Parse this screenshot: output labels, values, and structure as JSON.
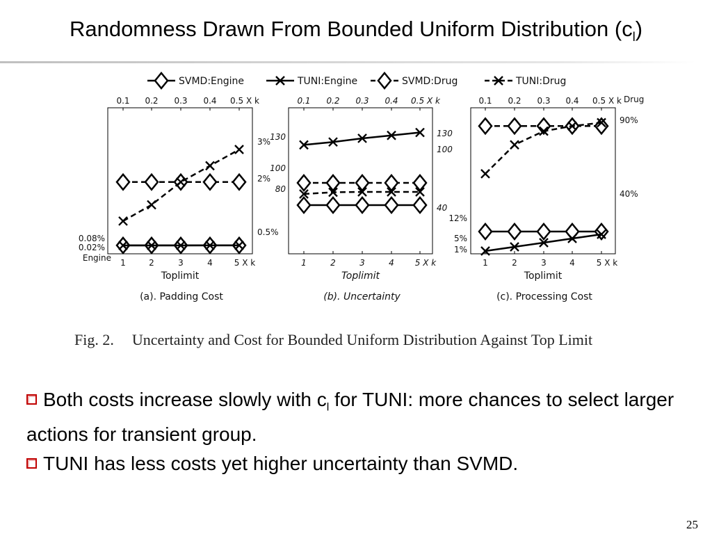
{
  "slide": {
    "title_main": "Randomness Drawn From Bounded Uniform Distribution (c",
    "title_sub": "l",
    "title_end": ")",
    "page_number": "25"
  },
  "figure": {
    "caption_label": "Fig. 2.",
    "caption_text": "Uncertainty and Cost for Bounded Uniform Distribution Against Top Limit",
    "legend": [
      "SVMD:Engine",
      "TUNI:Engine",
      "SVMD:Drug",
      "TUNI:Drug"
    ]
  },
  "bullets": [
    {
      "text_before": "Both costs increase slowly with c",
      "sub": "l",
      "text_after": " for TUNI: more chances to select larger actions for transient group."
    },
    {
      "text_before": "TUNI has less costs yet higher uncertainty than SVMD.",
      "sub": "",
      "text_after": ""
    }
  ],
  "chart_data": [
    {
      "type": "line",
      "title": "(a). Padding Cost",
      "xlabel": "Toplimit",
      "x_bottom_ticks": [
        "1",
        "2",
        "3",
        "4",
        "5 X k"
      ],
      "x_top_ticks": [
        "0.1",
        "0.2",
        "0.3",
        "0.4",
        "0.5 X k"
      ],
      "x": [
        1,
        2,
        3,
        4,
        5
      ],
      "left_axis_label": "Engine",
      "left_ticks": [
        "0.08%",
        "0.02%"
      ],
      "right_ticks": [
        "3%",
        "2%",
        "0.5%"
      ],
      "series": [
        {
          "name": "SVMD:Engine",
          "axis": "left",
          "values": [
            0.08,
            0.08,
            0.08,
            0.08,
            0.08
          ]
        },
        {
          "name": "TUNI:Engine",
          "axis": "left",
          "values": [
            0.0,
            0.01,
            0.03,
            0.07,
            0.08
          ]
        },
        {
          "name": "SVMD:Drug",
          "axis": "right",
          "values": [
            2.0,
            2.0,
            2.0,
            2.0,
            2.0
          ]
        },
        {
          "name": "TUNI:Drug",
          "axis": "right",
          "values": [
            0.8,
            1.3,
            2.0,
            2.5,
            3.0
          ]
        }
      ]
    },
    {
      "type": "line",
      "title": "(b). Uncertainty",
      "xlabel": "Toplimit",
      "x_bottom_ticks": [
        "1",
        "2",
        "3",
        "4",
        "5 X k"
      ],
      "x_top_ticks": [
        "0.1",
        "0.2",
        "0.3",
        "0.4",
        "0.5 X k"
      ],
      "x": [
        1,
        2,
        3,
        4,
        5
      ],
      "left_ticks": [
        "130",
        "100",
        "80"
      ],
      "right_ticks": [
        "130",
        "100",
        "40"
      ],
      "series": [
        {
          "name": "SVMD:Engine",
          "axis": "left",
          "values": [
            88,
            88,
            88,
            88,
            88
          ]
        },
        {
          "name": "TUNI:Engine",
          "axis": "right",
          "values": [
            92,
            96,
            101,
            105,
            109
          ]
        },
        {
          "name": "SVMD:Drug",
          "axis": "right",
          "values": [
            40,
            40,
            40,
            40,
            40
          ]
        },
        {
          "name": "TUNI:Drug",
          "axis": "left",
          "values": [
            120,
            125,
            126,
            126,
            126
          ]
        }
      ]
    },
    {
      "type": "line",
      "title": "(c). Processing Cost",
      "xlabel": "Toplimit",
      "x_bottom_ticks": [
        "1",
        "2",
        "3",
        "4",
        "5 X k"
      ],
      "x_top_ticks": [
        "0.1",
        "0.2",
        "0.3",
        "0.4",
        "0.5 X k"
      ],
      "top_axis_label": "Drug",
      "x": [
        1,
        2,
        3,
        4,
        5
      ],
      "left_ticks": [
        "12%",
        "5%",
        "1%"
      ],
      "right_ticks": [
        "90%",
        "40%"
      ],
      "series": [
        {
          "name": "SVMD:Engine",
          "axis": "left",
          "values": [
            7,
            7,
            7,
            7,
            7
          ]
        },
        {
          "name": "TUNI:Engine",
          "axis": "left",
          "values": [
            0,
            1.5,
            3,
            4.5,
            6
          ]
        },
        {
          "name": "SVMD:Drug",
          "axis": "right",
          "values": [
            86,
            86,
            86,
            86,
            86
          ]
        },
        {
          "name": "TUNI:Drug",
          "axis": "right",
          "values": [
            58,
            75,
            83,
            86,
            88
          ]
        }
      ]
    }
  ]
}
